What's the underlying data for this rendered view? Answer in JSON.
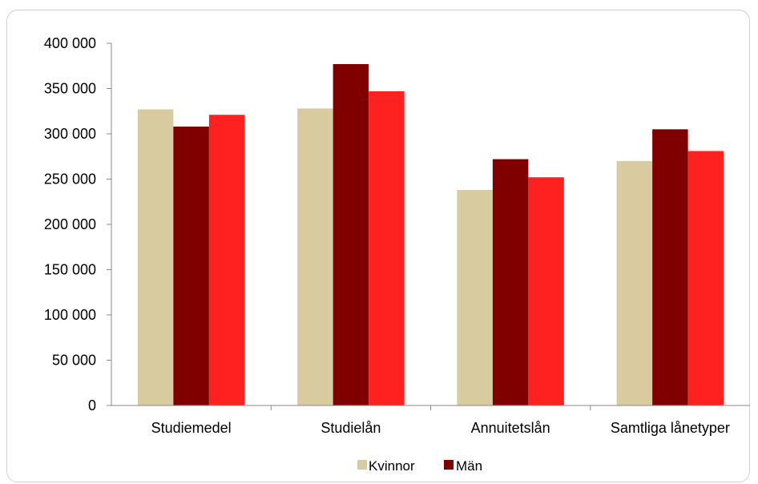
{
  "chart_data": {
    "type": "bar",
    "categories": [
      "Studiemedel",
      "Studielån",
      "Annuitetslån",
      "Samtliga lånetyper"
    ],
    "series": [
      {
        "name": "Kvinnor",
        "color": "#D9CBA0",
        "values": [
          327000,
          328000,
          238000,
          270000
        ]
      },
      {
        "name": "Män",
        "color": "#800000",
        "values": [
          308000,
          377000,
          272000,
          305000
        ]
      },
      {
        "name": "",
        "color": "#FF2020",
        "values": [
          321000,
          347000,
          252000,
          281000
        ]
      }
    ],
    "title": "",
    "xlabel": "",
    "ylabel": "",
    "ylim": [
      0,
      400000
    ],
    "yticks": [
      0,
      50000,
      100000,
      150000,
      200000,
      250000,
      300000,
      350000,
      400000
    ],
    "ytick_labels": [
      "0",
      "50 000",
      "100 000",
      "150 000",
      "200 000",
      "250 000",
      "300 000",
      "350 000",
      "400 000"
    ],
    "grid": false,
    "legend_position": "bottom-center",
    "legend_entries": [
      "Kvinnor",
      "Män"
    ]
  }
}
